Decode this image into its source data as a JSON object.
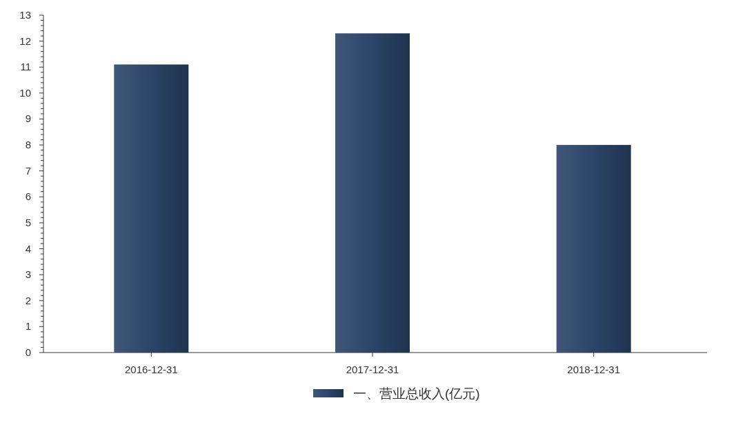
{
  "chart_data": {
    "type": "bar",
    "categories": [
      "2016-12-31",
      "2017-12-31",
      "2018-12-31"
    ],
    "series": [
      {
        "name": "一、营业总收入(亿元)",
        "color": "#2b4468",
        "values": [
          11.1,
          12.3,
          8.0
        ]
      }
    ],
    "ylim": [
      0,
      13
    ],
    "yticks": [
      0,
      1,
      2,
      3,
      4,
      5,
      6,
      7,
      8,
      9,
      10,
      11,
      12,
      13
    ],
    "grid": false,
    "legend": "bottom"
  }
}
